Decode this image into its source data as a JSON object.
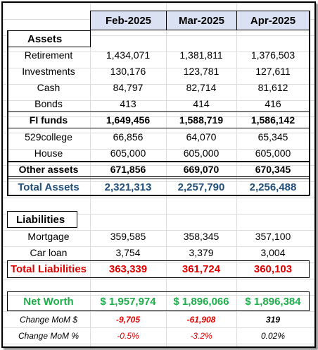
{
  "header": {
    "col1": "Feb-2025",
    "col2": "Mar-2025",
    "col3": "Apr-2025"
  },
  "assets": {
    "section_label": "Assets",
    "rows": [
      {
        "label": "Retirement",
        "v1": "1,434,071",
        "v2": "1,381,811",
        "v3": "1,376,503"
      },
      {
        "label": "Investments",
        "v1": "130,176",
        "v2": "123,781",
        "v3": "127,611"
      },
      {
        "label": "Cash",
        "v1": "84,797",
        "v2": "82,714",
        "v3": "81,612"
      },
      {
        "label": "Bonds",
        "v1": "413",
        "v2": "414",
        "v3": "416"
      }
    ],
    "fi_funds": {
      "label": "FI funds",
      "v1": "1,649,456",
      "v2": "1,588,719",
      "v3": "1,586,142"
    },
    "rows2": [
      {
        "label": "529college",
        "v1": "66,856",
        "v2": "64,070",
        "v3": "65,345"
      },
      {
        "label": "House",
        "v1": "605,000",
        "v2": "605,000",
        "v3": "605,000"
      }
    ],
    "other_assets": {
      "label": "Other assets",
      "v1": "671,856",
      "v2": "669,070",
      "v3": "670,345"
    },
    "total": {
      "label": "Total Assets",
      "v1": "2,321,313",
      "v2": "2,257,790",
      "v3": "2,256,488"
    }
  },
  "liabilities": {
    "section_label": "Liabilities",
    "rows": [
      {
        "label": "Mortgage",
        "v1": "359,585",
        "v2": "358,345",
        "v3": "357,100"
      },
      {
        "label": "Car loan",
        "v1": "3,754",
        "v2": "3,379",
        "v3": "3,004"
      }
    ],
    "total": {
      "label": "Total Liabilities",
      "v1": "363,339",
      "v2": "361,724",
      "v3": "360,103"
    }
  },
  "net_worth": {
    "label": "Net Worth",
    "v1": "$ 1,957,974",
    "v2": "$ 1,896,066",
    "v3": "$ 1,896,384",
    "change_dollar": {
      "label": "Change MoM $",
      "v1": "-9,705",
      "v2": "-61,908",
      "v3": "319"
    },
    "change_pct": {
      "label": "Change MoM %",
      "v1": "-0.5%",
      "v2": "-3.2%",
      "v3": "0.02%"
    }
  },
  "colors": {
    "header_bg": "#d9e1f2",
    "blue": "#1f4e79",
    "red": "#e00000",
    "green": "#1fae4b"
  }
}
